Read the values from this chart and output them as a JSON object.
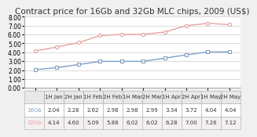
{
  "title": "Contract price for 16Gb and 32Gb MLC chips, 2009 (US$)",
  "x_labels": [
    "1H Jan",
    "2H Jan",
    "1H Feb",
    "2H Feb",
    "1H Mar",
    "2H Mar",
    "1H Apr",
    "2H Apr",
    "1H May",
    "2H May"
  ],
  "series_16gb": [
    2.04,
    2.28,
    2.62,
    2.98,
    2.98,
    2.99,
    3.34,
    3.72,
    4.04,
    4.04
  ],
  "series_32gb": [
    4.14,
    4.6,
    5.09,
    5.88,
    6.02,
    6.02,
    6.28,
    7.0,
    7.26,
    7.12
  ],
  "color_16gb": "#7f9ec4",
  "color_32gb": "#e8a0a0",
  "ylim": [
    0.0,
    8.0
  ],
  "yticks": [
    0.0,
    1.0,
    2.0,
    3.0,
    4.0,
    5.0,
    6.0,
    7.0,
    8.0
  ],
  "legend_16gb": "16Gb",
  "legend_32gb": "32Gb",
  "table_16gb": [
    "2.04",
    "2.28",
    "2.62",
    "2.98",
    "2.98",
    "2.99",
    "3.34",
    "3.72",
    "4.04",
    "4.04"
  ],
  "table_32gb": [
    "4.14",
    "4.60",
    "5.09",
    "5.88",
    "6.02",
    "6.02",
    "6.28",
    "7.00",
    "7.26",
    "7.12"
  ],
  "bg_color": "#f0f0f0",
  "plot_bg": "#ffffff",
  "title_fontsize": 7.5,
  "tick_fontsize": 5.5,
  "table_fontsize": 5.0
}
